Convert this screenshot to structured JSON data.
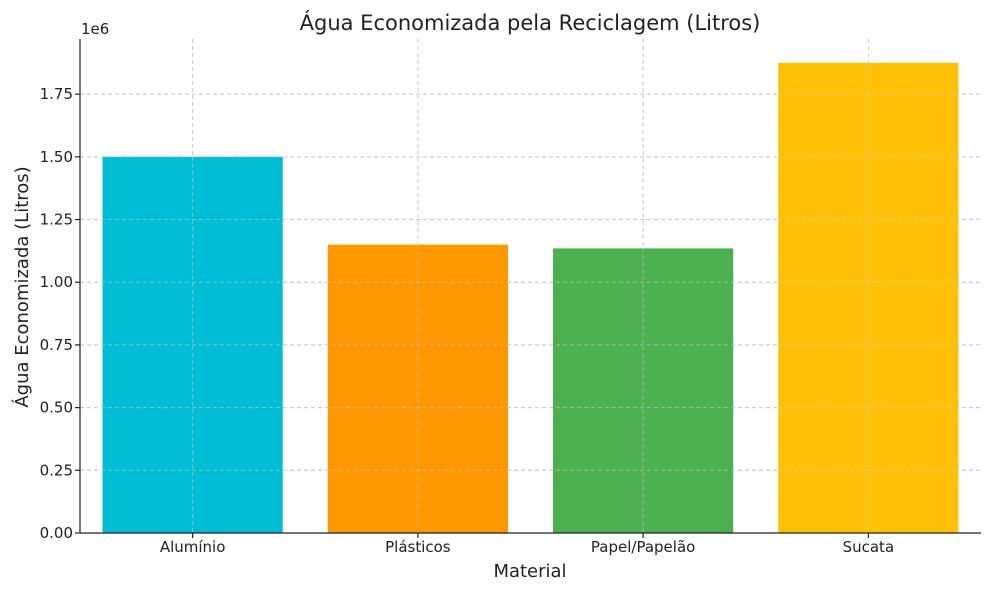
{
  "chart_data": {
    "type": "bar",
    "title": "Água Economizada pela Reciclagem (Litros)",
    "xlabel": "Material",
    "ylabel": "Água Economizada (Litros)",
    "y_offset_label": "1e6",
    "categories": [
      "Alumínio",
      "Plásticos",
      "Papel/Papelão",
      "Sucata"
    ],
    "values": [
      1500000,
      1150000,
      1135000,
      1875000
    ],
    "colors": [
      "#00bcd4",
      "#ff9800",
      "#4caf50",
      "#ffc107"
    ],
    "ylim": [
      0,
      1970000
    ],
    "yticks": [
      0,
      250000,
      500000,
      750000,
      1000000,
      1250000,
      1500000,
      1750000
    ],
    "ytick_labels": [
      "0.00",
      "0.25",
      "0.50",
      "0.75",
      "1.00",
      "1.25",
      "1.50",
      "1.75"
    ],
    "grid": true,
    "legend": false
  }
}
